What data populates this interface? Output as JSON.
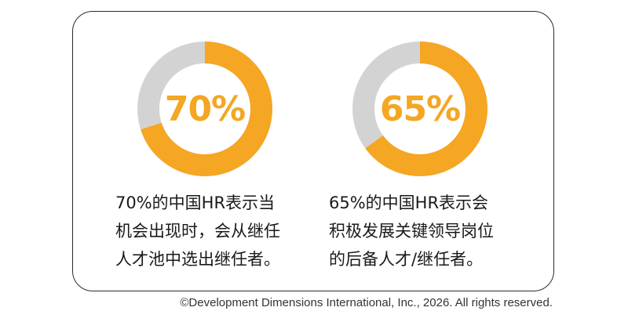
{
  "chart_data": [
    {
      "type": "pie",
      "variant": "donut",
      "center_label": "70%",
      "values": [
        70,
        30
      ],
      "colors": [
        "#f5a623",
        "#d3d3d3"
      ],
      "caption_lines": [
        "70%的中国HR表示当",
        "机会出现时，会从继任",
        "人才池中选出继任者。"
      ]
    },
    {
      "type": "pie",
      "variant": "donut",
      "center_label": "65%",
      "values": [
        65,
        35
      ],
      "colors": [
        "#f5a623",
        "#d3d3d3"
      ],
      "caption_lines": [
        "65%的中国HR表示会",
        "积极发展关键领导岗位",
        "的后备人才/继任者。"
      ]
    }
  ],
  "copyright": "©Development Dimensions International, Inc., 2026. All rights reserved."
}
